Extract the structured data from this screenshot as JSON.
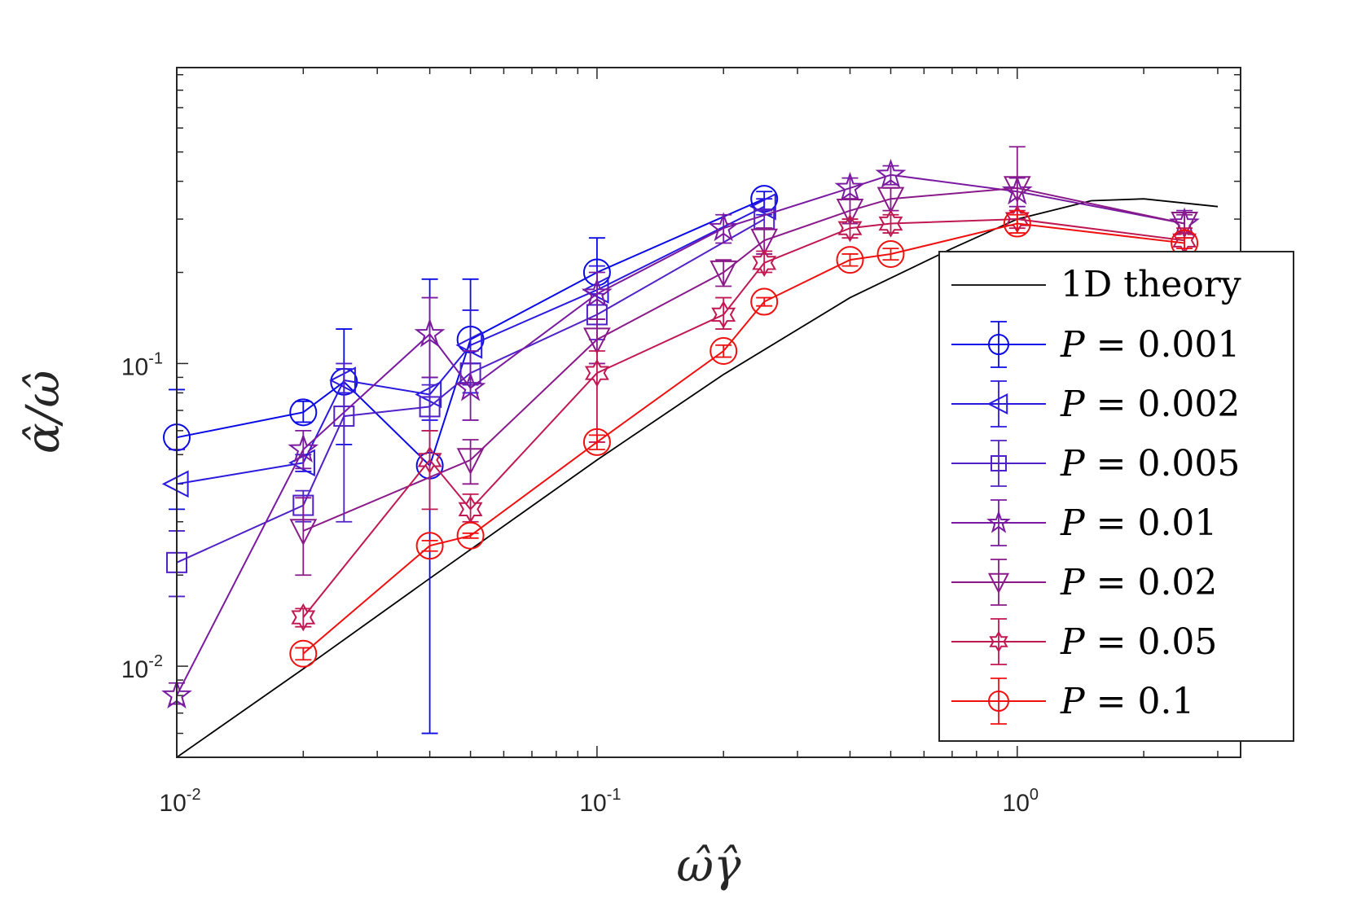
{
  "chart_data": {
    "type": "line",
    "x_scale": "log",
    "y_scale": "log",
    "xlim": [
      0.01,
      3.4
    ],
    "ylim": [
      0.005,
      0.95
    ],
    "xlabel": "ω̂γ̂",
    "ylabel": "α̂/ω̂",
    "x_ticks": [
      {
        "base": "10",
        "exp": "-2",
        "value": 0.01
      },
      {
        "base": "10",
        "exp": "-1",
        "value": 0.1
      },
      {
        "base": "10",
        "exp": "0",
        "value": 1
      }
    ],
    "y_ticks": [
      {
        "base": "10",
        "exp": "-2",
        "value": 0.01
      },
      {
        "base": "10",
        "exp": "-1",
        "value": 0.1
      }
    ],
    "legend_position": "lower-right",
    "theory": {
      "name": "1D theory",
      "color": "#000000",
      "x": [
        0.01,
        0.02,
        0.04,
        0.1,
        0.2,
        0.4,
        0.7,
        1.0,
        1.5,
        2.0,
        3.0
      ],
      "y": [
        0.005,
        0.0098,
        0.0195,
        0.048,
        0.092,
        0.165,
        0.24,
        0.3,
        0.345,
        0.35,
        0.33
      ]
    },
    "series": [
      {
        "name": "P = 0.001",
        "label_var": "P",
        "label_eq": " = 0.001",
        "marker": "circle",
        "color": "#0a0ae6",
        "x": [
          0.01,
          0.02,
          0.025,
          0.04,
          0.05,
          0.1,
          0.25
        ],
        "y": [
          0.057,
          0.069,
          0.087,
          0.046,
          0.12,
          0.2,
          0.35
        ],
        "err": [
          [
            0.033,
            0.082
          ],
          [
            0.064,
            0.075
          ],
          [
            0.054,
            0.13
          ],
          [
            0.006,
            0.19
          ],
          [
            0.1,
            0.19
          ],
          [
            0.14,
            0.26
          ],
          [
            0.32,
            0.37
          ]
        ]
      },
      {
        "name": "P = 0.002",
        "label_var": "P",
        "label_eq": " = 0.002",
        "marker": "triangle-left",
        "color": "#2a1ae0",
        "x": [
          0.01,
          0.02,
          0.025,
          0.04,
          0.05,
          0.1,
          0.25
        ],
        "y": [
          0.04,
          0.047,
          0.088,
          0.079,
          0.115,
          0.175,
          0.33
        ],
        "err": [
          [
            0.028,
            0.052
          ],
          [
            0.044,
            0.05
          ],
          [
            0.08,
            0.096
          ],
          [
            0.065,
            0.09
          ],
          [
            0.08,
            0.15
          ],
          [
            0.14,
            0.21
          ],
          [
            0.31,
            0.35
          ]
        ]
      },
      {
        "name": "P = 0.005",
        "label_var": "P",
        "label_eq": " = 0.005",
        "marker": "square",
        "color": "#5020c8",
        "x": [
          0.01,
          0.02,
          0.025,
          0.04,
          0.05,
          0.1,
          0.25
        ],
        "y": [
          0.022,
          0.034,
          0.067,
          0.072,
          0.093,
          0.145,
          0.3
        ],
        "err": [
          [
            0.017,
            0.028
          ],
          [
            0.03,
            0.038
          ],
          [
            0.03,
            0.1
          ],
          [
            0.06,
            0.085
          ],
          [
            0.085,
            0.1
          ],
          [
            0.12,
            0.17
          ],
          [
            0.28,
            0.32
          ]
        ]
      },
      {
        "name": "P = 0.01",
        "label_var": "P",
        "label_eq": " = 0.01",
        "marker": "star5",
        "color": "#7a1aa0",
        "x": [
          0.01,
          0.02,
          0.04,
          0.05,
          0.1,
          0.2,
          0.4,
          0.5,
          1.0,
          2.5
        ],
        "y": [
          0.008,
          0.052,
          0.125,
          0.083,
          0.17,
          0.28,
          0.38,
          0.42,
          0.37,
          0.29
        ],
        "err": [
          [
            0.0075,
            0.0088
          ],
          [
            0.045,
            0.06
          ],
          [
            0.09,
            0.165
          ],
          [
            0.065,
            0.11
          ],
          [
            0.14,
            0.2
          ],
          [
            0.25,
            0.31
          ],
          [
            0.35,
            0.41
          ],
          [
            0.39,
            0.45
          ],
          [
            0.33,
            0.41
          ],
          [
            0.26,
            0.32
          ]
        ]
      },
      {
        "name": "P = 0.02",
        "label_var": "P",
        "label_eq": " = 0.02",
        "marker": "triangle-down",
        "color": "#8a1a8a",
        "x": [
          0.02,
          0.05,
          0.1,
          0.2,
          0.25,
          0.4,
          0.5,
          1.0,
          2.5
        ],
        "y": [
          0.028,
          0.048,
          0.12,
          0.2,
          0.255,
          0.32,
          0.35,
          0.38,
          0.29
        ],
        "err": [
          [
            0.02,
            0.036
          ],
          [
            0.04,
            0.056
          ],
          [
            0.1,
            0.14
          ],
          [
            0.18,
            0.22
          ],
          [
            0.23,
            0.28
          ],
          [
            0.29,
            0.35
          ],
          [
            0.32,
            0.38
          ],
          [
            0.3,
            0.52
          ],
          [
            0.27,
            0.31
          ]
        ]
      },
      {
        "name": "P = 0.05",
        "label_var": "P",
        "label_eq": " = 0.05",
        "marker": "star6",
        "color": "#c01850",
        "x": [
          0.02,
          0.04,
          0.05,
          0.1,
          0.2,
          0.25,
          0.4,
          0.5,
          1.0,
          2.5
        ],
        "y": [
          0.0145,
          0.048,
          0.033,
          0.093,
          0.145,
          0.215,
          0.28,
          0.29,
          0.3,
          0.255
        ],
        "err": [
          [
            0.0135,
            0.0155
          ],
          [
            0.033,
            0.06
          ],
          [
            0.03,
            0.037
          ],
          [
            0.055,
            0.11
          ],
          [
            0.13,
            0.165
          ],
          [
            0.2,
            0.235
          ],
          [
            0.26,
            0.3
          ],
          [
            0.27,
            0.31
          ],
          [
            0.28,
            0.32
          ],
          [
            0.23,
            0.28
          ]
        ]
      },
      {
        "name": "P = 0.1",
        "label_var": "P",
        "label_eq": " = 0.1",
        "marker": "circle",
        "color": "#f01010",
        "x": [
          0.02,
          0.04,
          0.05,
          0.1,
          0.2,
          0.25,
          0.4,
          0.5,
          1.0,
          2.5
        ],
        "y": [
          0.011,
          0.025,
          0.027,
          0.055,
          0.11,
          0.16,
          0.22,
          0.23,
          0.29,
          0.25
        ],
        "err": [
          [
            0.0105,
            0.0115
          ],
          [
            0.024,
            0.026
          ],
          [
            0.0265,
            0.0275
          ],
          [
            0.052,
            0.058
          ],
          [
            0.105,
            0.115
          ],
          [
            0.155,
            0.165
          ],
          [
            0.21,
            0.23
          ],
          [
            0.22,
            0.24
          ],
          [
            0.27,
            0.31
          ],
          [
            0.24,
            0.26
          ]
        ]
      }
    ]
  }
}
